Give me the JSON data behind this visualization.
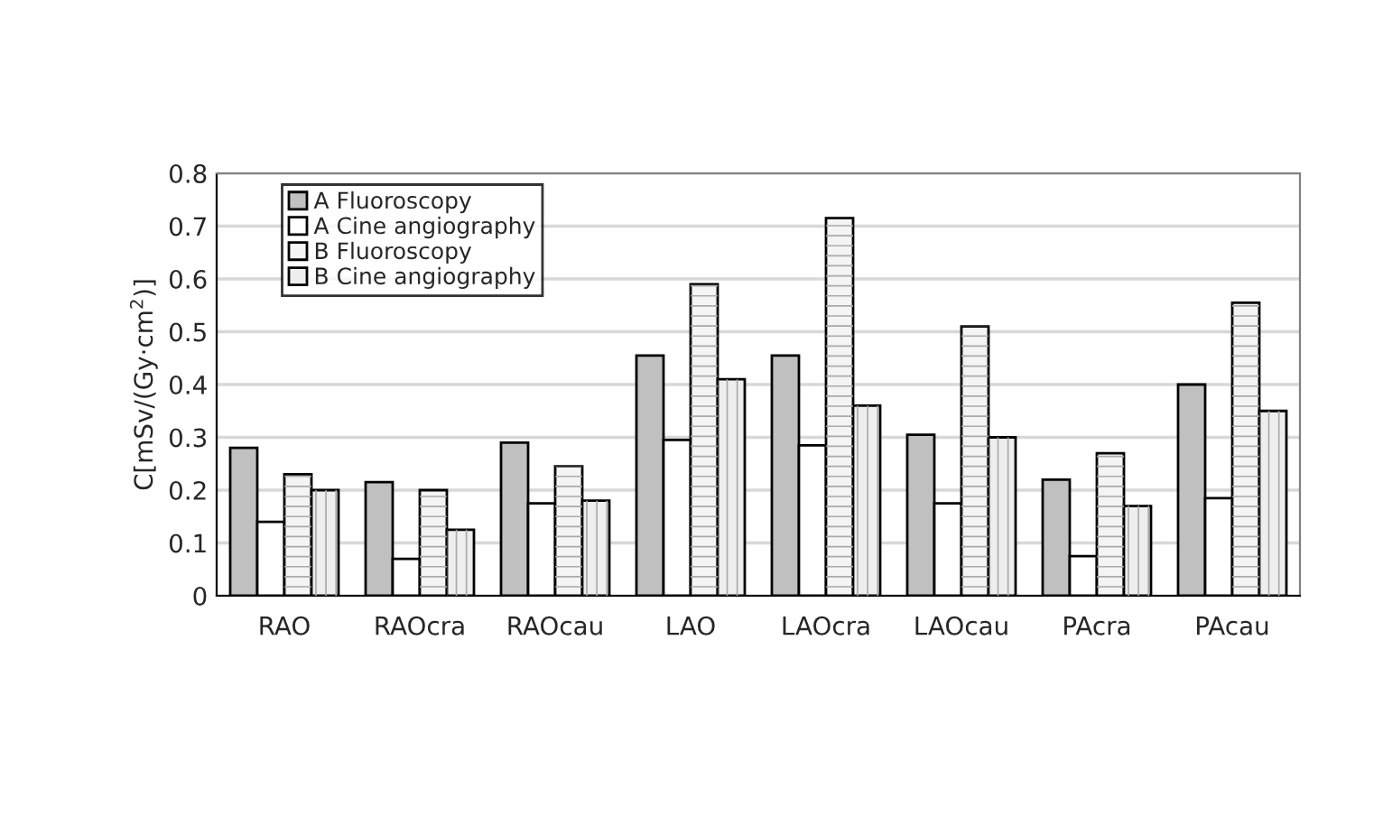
{
  "chart_data": {
    "type": "bar",
    "ylabel": "C[mSv/(Gy·cm$^{2}$)]",
    "categories": [
      "RAO",
      "RAOcra",
      "RAOcau",
      "LAO",
      "LAOcra",
      "LAOcau",
      "PAcra",
      "PAcau"
    ],
    "series": [
      {
        "name": "A Fluoroscopy",
        "color": "#c0c0c0",
        "values": [
          0.28,
          0.215,
          0.29,
          0.455,
          0.455,
          0.305,
          0.22,
          0.4
        ]
      },
      {
        "name": "A Cine angiography",
        "color": "#ffffff",
        "values": [
          0.14,
          0.07,
          0.175,
          0.295,
          0.285,
          0.175,
          0.075,
          0.185
        ]
      },
      {
        "name": "B Fluoroscopy",
        "color": "#f4f4f4",
        "values": [
          0.23,
          0.2,
          0.245,
          0.59,
          0.715,
          0.51,
          0.27,
          0.555
        ]
      },
      {
        "name": "B Cine angiography",
        "color": "#eeeeee",
        "values": [
          0.2,
          0.125,
          0.18,
          0.41,
          0.36,
          0.3,
          0.17,
          0.35
        ]
      }
    ],
    "ylim": [
      0,
      0.8
    ],
    "yticks": [
      {
        "value": 0,
        "label": "0"
      },
      0.1,
      0.2,
      0.3,
      0.4,
      0.5,
      0.6,
      0.7,
      0.8
    ],
    "grid": "y",
    "legend": "top left"
  }
}
